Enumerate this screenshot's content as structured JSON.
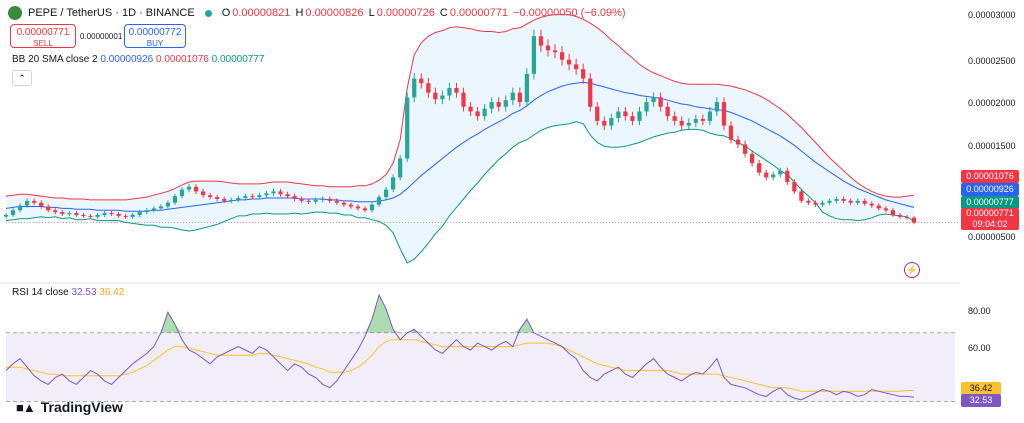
{
  "header": {
    "symbol": "PEPE / TetherUS · 1D · BINANCE",
    "open_label": "O",
    "open": "0.00000821",
    "high_label": "H",
    "high": "0.00000826",
    "low_label": "L",
    "low": "0.00000726",
    "close_label": "C",
    "close": "0.00000771",
    "change": "−0.00000050 (−6.09%)"
  },
  "trade": {
    "sell_price": "0.00000771",
    "sell_label": "SELL",
    "spread": "0.00000001",
    "buy_price": "0.00000772",
    "buy_label": "BUY"
  },
  "bb_legend": {
    "name": "BB 20 SMA close 2",
    "basis": "0.00000926",
    "upper": "0.00001076",
    "lower": "0.00000777"
  },
  "rsi_legend": {
    "name": "RSI 14 close",
    "rsi": "32.53",
    "ma": "36.42"
  },
  "price_axis": [
    "0.00003000",
    "0.00002500",
    "0.00002000",
    "0.00001500",
    "0.00000500"
  ],
  "rsi_axis": [
    "80.00",
    "60.00"
  ],
  "price_tags": {
    "upper": "0.00001076",
    "basis": "0.00000926",
    "lower": "0.00000777",
    "last": "0.00000771",
    "countdown": "09:04:02"
  },
  "rsi_tags": {
    "ma": "36.42",
    "rsi": "32.53"
  },
  "branding": {
    "name": "TradingView"
  },
  "colors": {
    "up": "#26a69a",
    "down": "#f23645",
    "upper_band": "#f23645",
    "basis": "#2962ff",
    "lower_band": "#089981",
    "band_fill": "#e3f2fd",
    "rsi": "#7e57c2",
    "rsi_ma": "#fbc02d"
  },
  "chart_data": {
    "type": "candlestick",
    "price_range": [
      3.5e-06,
      3.05e-05
    ],
    "rsi_range": [
      28,
      92
    ],
    "rsi_band": [
      30,
      70
    ],
    "candle_count": 130,
    "closes": [
      8.5e-06,
      9e-06,
      9.5e-06,
      1e-05,
      9.8e-06,
      9.4e-06,
      9e-06,
      8.8e-06,
      8.6e-06,
      8.7e-06,
      8.5e-06,
      8.4e-06,
      8.3e-06,
      8.5e-06,
      8.7e-06,
      8.6e-06,
      8.4e-06,
      8.3e-06,
      8.5e-06,
      8.8e-06,
      9e-06,
      9.2e-06,
      9.4e-06,
      9.8e-06,
      1.05e-05,
      1.12e-05,
      1.15e-05,
      1.1e-05,
      1.06e-05,
      1.04e-05,
      1.02e-05,
      1e-05,
      1.01e-05,
      1.03e-05,
      1.05e-05,
      1.04e-05,
      1.06e-05,
      1.08e-05,
      1.1e-05,
      1.07e-05,
      1.05e-05,
      1.02e-05,
      1e-05,
      9.9e-06,
      1.01e-05,
      1.02e-05,
      1e-05,
      9.8e-06,
      9.6e-06,
      9.4e-06,
      9.2e-06,
      9e-06,
      9.6e-06,
      1.04e-05,
      1.12e-05,
      1.25e-05,
      1.45e-05,
      2.1e-05,
      2.3e-05,
      2.25e-05,
      2.15e-05,
      2.08e-05,
      2.12e-05,
      2.2e-05,
      2.15e-05,
      2e-05,
      1.95e-05,
      1.9e-05,
      1.98e-05,
      2.05e-05,
      2e-05,
      2.07e-05,
      2.15e-05,
      2.05e-05,
      2.35e-05,
      2.75e-05,
      2.65e-05,
      2.6e-05,
      2.58e-05,
      2.5e-05,
      2.45e-05,
      2.4e-05,
      2.3e-05,
      2e-05,
      1.85e-05,
      1.8e-05,
      1.88e-05,
      1.95e-05,
      1.9e-05,
      1.85e-05,
      1.95e-05,
      2.05e-05,
      2.1e-05,
      2e-05,
      1.9e-05,
      1.85e-05,
      1.8e-05,
      1.83e-05,
      1.87e-05,
      1.85e-05,
      1.95e-05,
      2.05e-05,
      1.8e-05,
      1.65e-05,
      1.6e-05,
      1.5e-05,
      1.4e-05,
      1.3e-05,
      1.25e-05,
      1.28e-05,
      1.32e-05,
      1.2e-05,
      1.1e-05,
      1e-05,
      9.8e-06,
      9.6e-06,
      9.8e-06,
      1e-05,
      1.02e-05,
      1e-05,
      9.8e-06,
      1e-05,
      9.7e-06,
      9.5e-06,
      9.2e-06,
      9e-06,
      8.5e-06,
      8.3e-06,
      8.2e-06,
      7.7e-06
    ],
    "upper_band": [
      1.05e-05,
      1.06e-05,
      1.07e-05,
      1.07e-05,
      1.06e-05,
      1.05e-05,
      1.04e-05,
      1.03e-05,
      1.03e-05,
      1.02e-05,
      1.02e-05,
      1.02e-05,
      1.01e-05,
      1.01e-05,
      1.01e-05,
      1.01e-05,
      1.01e-05,
      1.01e-05,
      1.02e-05,
      1.03e-05,
      1.04e-05,
      1.06e-05,
      1.08e-05,
      1.1e-05,
      1.13e-05,
      1.17e-05,
      1.2e-05,
      1.21e-05,
      1.21e-05,
      1.21e-05,
      1.21e-05,
      1.2e-05,
      1.19e-05,
      1.18e-05,
      1.18e-05,
      1.18e-05,
      1.18e-05,
      1.19e-05,
      1.2e-05,
      1.2e-05,
      1.2e-05,
      1.19e-05,
      1.18e-05,
      1.17e-05,
      1.16e-05,
      1.16e-05,
      1.15e-05,
      1.15e-05,
      1.15e-05,
      1.15e-05,
      1.16e-05,
      1.16e-05,
      1.18e-05,
      1.22e-05,
      1.28e-05,
      1.4e-05,
      1.65e-05,
      2.2e-05,
      2.55e-05,
      2.68e-05,
      2.75e-05,
      2.79e-05,
      2.81e-05,
      2.84e-05,
      2.85e-05,
      2.84e-05,
      2.83e-05,
      2.81e-05,
      2.8e-05,
      2.8e-05,
      2.79e-05,
      2.8e-05,
      2.83e-05,
      2.84e-05,
      2.88e-05,
      2.92e-05,
      2.95e-05,
      2.97e-05,
      2.98e-05,
      2.98e-05,
      2.98e-05,
      2.96e-05,
      2.93e-05,
      2.89e-05,
      2.84e-05,
      2.78e-05,
      2.71e-05,
      2.65e-05,
      2.58e-05,
      2.52e-05,
      2.45e-05,
      2.4e-05,
      2.36e-05,
      2.33e-05,
      2.3e-05,
      2.27e-05,
      2.25e-05,
      2.24e-05,
      2.24e-05,
      2.24e-05,
      2.24e-05,
      2.24e-05,
      2.23e-05,
      2.22e-05,
      2.2e-05,
      2.18e-05,
      2.15e-05,
      2.12e-05,
      2.08e-05,
      2.03e-05,
      1.98e-05,
      1.92e-05,
      1.85e-05,
      1.78e-05,
      1.7e-05,
      1.62e-05,
      1.54e-05,
      1.46e-05,
      1.39e-05,
      1.32e-05,
      1.25e-05,
      1.19e-05,
      1.14e-05,
      1.1e-05,
      1.07e-05,
      1.05e-05,
      1.04e-05,
      1.04e-05,
      1.05e-05,
      1.06e-05
    ],
    "basis": [
      9.2e-06,
      9.3e-06,
      9.4e-06,
      9.4e-06,
      9.4e-06,
      9.4e-06,
      9.3e-06,
      9.3e-06,
      9.2e-06,
      9.2e-06,
      9.1e-06,
      9.1e-06,
      9.1e-06,
      9e-06,
      9e-06,
      9e-06,
      9e-06,
      8.9e-06,
      8.9e-06,
      8.9e-06,
      8.9e-06,
      9e-06,
      9e-06,
      9.1e-06,
      9.2e-06,
      9.3e-06,
      9.4e-06,
      9.5e-06,
      9.6e-06,
      9.7e-06,
      9.8e-06,
      9.9e-06,
      1e-05,
      1.01e-05,
      1.01e-05,
      1.02e-05,
      1.02e-05,
      1.03e-05,
      1.03e-05,
      1.03e-05,
      1.03e-05,
      1.03e-05,
      1.02e-05,
      1.02e-05,
      1.02e-05,
      1.02e-05,
      1.01e-05,
      1.01e-05,
      1e-05,
      1e-05,
      9.9e-06,
      9.9e-06,
      9.9e-06,
      1e-05,
      1.01e-05,
      1.03e-05,
      1.07e-05,
      1.13e-05,
      1.2e-05,
      1.27e-05,
      1.33e-05,
      1.39e-05,
      1.45e-05,
      1.51e-05,
      1.57e-05,
      1.62e-05,
      1.67e-05,
      1.71e-05,
      1.76e-05,
      1.8e-05,
      1.84e-05,
      1.88e-05,
      1.93e-05,
      1.96e-05,
      2.01e-05,
      2.07e-05,
      2.12e-05,
      2.16e-05,
      2.19e-05,
      2.22e-05,
      2.24e-05,
      2.25e-05,
      2.26e-05,
      2.25e-05,
      2.23e-05,
      2.21e-05,
      2.19e-05,
      2.17e-05,
      2.15e-05,
      2.14e-05,
      2.12e-05,
      2.11e-05,
      2.1e-05,
      2.09e-05,
      2.07e-05,
      2.05e-05,
      2.03e-05,
      2.02e-05,
      2e-05,
      1.99e-05,
      1.98e-05,
      1.97e-05,
      1.96e-05,
      1.94e-05,
      1.91e-05,
      1.88e-05,
      1.85e-05,
      1.81e-05,
      1.77e-05,
      1.73e-05,
      1.69e-05,
      1.64e-05,
      1.59e-05,
      1.53e-05,
      1.47e-05,
      1.41e-05,
      1.36e-05,
      1.31e-05,
      1.26e-05,
      1.21e-05,
      1.17e-05,
      1.13e-05,
      1.1e-05,
      1.07e-05,
      1.04e-05,
      1.01e-05,
      9.9e-06,
      9.7e-06,
      9.5e-06,
      9.3e-06
    ],
    "lower_band": [
      7.9e-06,
      8e-06,
      8.1e-06,
      8.1e-06,
      8.2e-06,
      8.3e-06,
      8.2e-06,
      8.3e-06,
      8.1e-06,
      8.2e-06,
      8e-06,
      8e-06,
      8.1e-06,
      7.9e-06,
      7.9e-06,
      7.9e-06,
      7.9e-06,
      7.7e-06,
      7.6e-06,
      7.5e-06,
      7.4e-06,
      7.4e-06,
      7.2e-06,
      7.2e-06,
      7.1e-06,
      6.9e-06,
      6.8e-06,
      6.9e-06,
      7.1e-06,
      7.3e-06,
      7.5e-06,
      7.8e-06,
      8.1e-06,
      8.4e-06,
      8.4e-06,
      8.6e-06,
      8.6e-06,
      8.7e-06,
      8.6e-06,
      8.6e-06,
      8.6e-06,
      8.7e-06,
      8.6e-06,
      8.7e-06,
      8.8e-06,
      8.8e-06,
      8.7e-06,
      8.7e-06,
      8.5e-06,
      8.5e-06,
      8.2e-06,
      8.2e-06,
      8e-06,
      7.8e-06,
      7.4e-06,
      6.6e-06,
      4.9e-06,
      3.4e-06,
      3.8e-06,
      4.6e-06,
      5.5e-06,
      6.5e-06,
      7.3e-06,
      8.4e-06,
      9.3e-06,
      1.02e-05,
      1.11e-05,
      1.19e-05,
      1.28e-05,
      1.36e-05,
      1.44e-05,
      1.5e-05,
      1.57e-05,
      1.62e-05,
      1.65e-05,
      1.7e-05,
      1.75e-05,
      1.78e-05,
      1.8e-05,
      1.81e-05,
      1.82e-05,
      1.84e-05,
      1.82e-05,
      1.7e-05,
      1.62e-05,
      1.58e-05,
      1.57e-05,
      1.57e-05,
      1.58e-05,
      1.6e-05,
      1.62e-05,
      1.65e-05,
      1.68e-05,
      1.7e-05,
      1.72e-05,
      1.73e-05,
      1.75e-05,
      1.76e-05,
      1.76e-05,
      1.75e-05,
      1.72e-05,
      1.7e-05,
      1.69e-05,
      1.66e-05,
      1.62e-05,
      1.58e-05,
      1.53e-05,
      1.48e-05,
      1.43e-05,
      1.38e-05,
      1.32e-05,
      1.28e-05,
      1.2e-05,
      1.12e-05,
      1.05e-05,
      9.8e-06,
      8.8e-06,
      8.4e-06,
      8.1e-06,
      8e-06,
      8e-06,
      7.9e-06,
      8e-06,
      8.2e-06,
      8.5e-06,
      8.6e-06,
      8.5e-06,
      8.4e-06,
      8.3e-06,
      7.8e-06
    ],
    "rsi": [
      48,
      52,
      55,
      50,
      45,
      42,
      40,
      44,
      46,
      42,
      40,
      44,
      48,
      46,
      42,
      40,
      44,
      48,
      52,
      55,
      58,
      62,
      70,
      82,
      75,
      66,
      60,
      58,
      55,
      52,
      56,
      58,
      60,
      62,
      60,
      58,
      62,
      60,
      56,
      52,
      48,
      52,
      50,
      46,
      44,
      40,
      38,
      42,
      48,
      54,
      60,
      68,
      78,
      92,
      84,
      72,
      66,
      70,
      72,
      68,
      64,
      60,
      58,
      62,
      66,
      62,
      60,
      64,
      62,
      60,
      63,
      65,
      62,
      72,
      78,
      70,
      68,
      66,
      64,
      62,
      58,
      55,
      48,
      44,
      42,
      46,
      48,
      50,
      46,
      44,
      48,
      52,
      55,
      50,
      46,
      44,
      42,
      45,
      47,
      46,
      50,
      55,
      44,
      40,
      39,
      38,
      36,
      34,
      33,
      36,
      38,
      34,
      32,
      31,
      33,
      35,
      37,
      36,
      34,
      36,
      35,
      33,
      34,
      37,
      36,
      35,
      34,
      33,
      33,
      32.53
    ],
    "rsi_ma": [
      50,
      50,
      50,
      49,
      48,
      47,
      46,
      46,
      45,
      45,
      45,
      45,
      45,
      45,
      45,
      45,
      45,
      46,
      47,
      49,
      51,
      54,
      57,
      60,
      62,
      62,
      61,
      60,
      59,
      58,
      57,
      57,
      57,
      57,
      57,
      57,
      58,
      58,
      57,
      56,
      55,
      54,
      53,
      52,
      50,
      49,
      47,
      47,
      47,
      48,
      50,
      53,
      57,
      62,
      65,
      66,
      66,
      66,
      66,
      65,
      64,
      63,
      62,
      62,
      62,
      62,
      62,
      62,
      62,
      62,
      62,
      62,
      62,
      63,
      64,
      64,
      64,
      64,
      63,
      62,
      60,
      58,
      56,
      54,
      52,
      51,
      50,
      49,
      48,
      48,
      48,
      48,
      48,
      48,
      48,
      47,
      46,
      46,
      46,
      46,
      46,
      46,
      45,
      44,
      43,
      42,
      41,
      40,
      39,
      38,
      38,
      38,
      37,
      36,
      36,
      36,
      36,
      36,
      36,
      36,
      36,
      36,
      36,
      36,
      36,
      36,
      36,
      36,
      36.42,
      36.42
    ]
  }
}
